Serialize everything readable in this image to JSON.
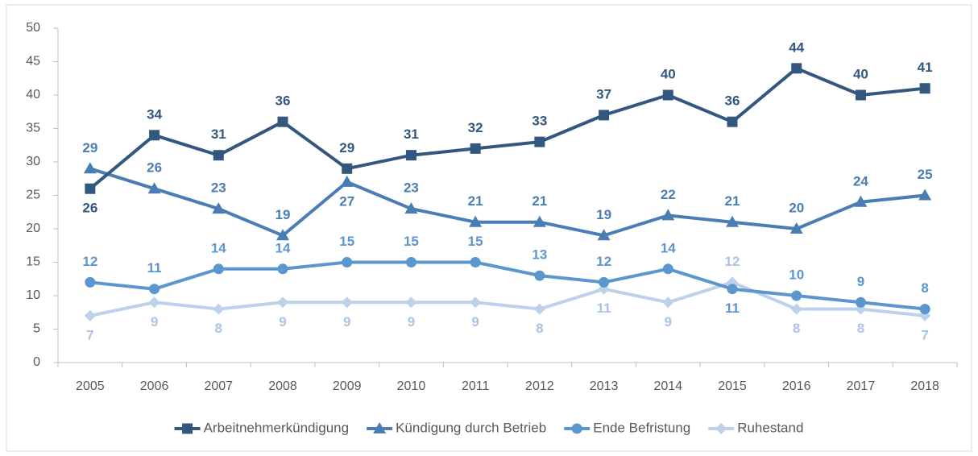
{
  "chart_data": {
    "type": "line",
    "categories": [
      "2005",
      "2006",
      "2007",
      "2008",
      "2009",
      "2010",
      "2011",
      "2012",
      "2013",
      "2014",
      "2015",
      "2016",
      "2017",
      "2018"
    ],
    "ylim": [
      0,
      50
    ],
    "yticks": [
      0,
      5,
      10,
      15,
      20,
      25,
      30,
      35,
      40,
      45,
      50
    ],
    "grid": false,
    "legend": "bottom",
    "series": [
      {
        "name": "Arbeitnehmerkündigung",
        "color": "#34577f",
        "marker": "square",
        "values": [
          26,
          34,
          31,
          36,
          29,
          31,
          32,
          33,
          37,
          40,
          36,
          44,
          40,
          41
        ]
      },
      {
        "name": "Kündigung durch Betrieb",
        "color": "#4a7db3",
        "marker": "triangle",
        "values": [
          29,
          26,
          23,
          19,
          27,
          23,
          21,
          21,
          19,
          22,
          21,
          20,
          24,
          25
        ]
      },
      {
        "name": "Ende Befristung",
        "color": "#5b96cf",
        "marker": "circle",
        "values": [
          12,
          11,
          14,
          14,
          15,
          15,
          15,
          13,
          12,
          14,
          11,
          10,
          9,
          8
        ]
      },
      {
        "name": "Ruhestand",
        "color": "#bdd1ea",
        "marker": "diamond",
        "values": [
          7,
          9,
          8,
          9,
          9,
          9,
          9,
          8,
          11,
          9,
          12,
          8,
          8,
          7
        ]
      }
    ]
  }
}
